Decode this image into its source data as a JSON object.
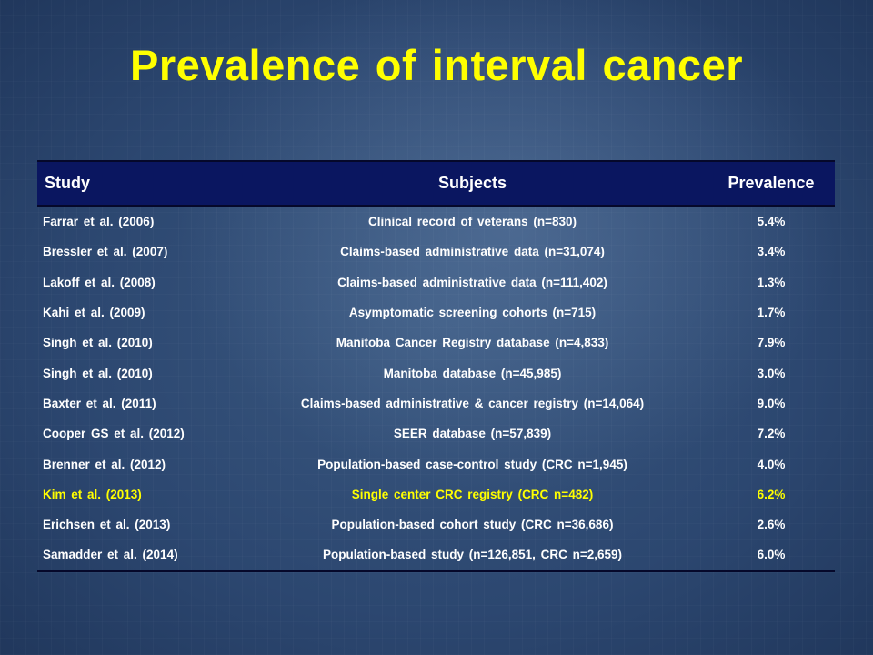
{
  "slide": {
    "title": "Prevalence of interval cancer"
  },
  "table": {
    "headers": {
      "study": "Study",
      "subjects": "Subjects",
      "prevalence": "Prevalence"
    },
    "rows": [
      {
        "study": "Farrar et al. (2006)",
        "subjects": "Clinical  record of veterans  (n=830)",
        "prevalence": "5.4%",
        "highlight": false
      },
      {
        "study": "Bressler  et al.  (2007)",
        "subjects": "Claims-based  administrative  data  (n=31,074)",
        "prevalence": "3.4%",
        "highlight": false
      },
      {
        "study": "Lakoff  et al.  (2008)",
        "subjects": "Claims-based  administrative  data  (n=111,402)",
        "prevalence": "1.3%",
        "highlight": false
      },
      {
        "study": "Kahi et al. (2009)",
        "subjects": "Asymptomatic  screening  cohorts  (n=715)",
        "prevalence": "1.7%",
        "highlight": false
      },
      {
        "study": "Singh  et al.  (2010)",
        "subjects": "Manitoba  Cancer  Registry  database  (n=4,833)",
        "prevalence": "7.9%",
        "highlight": false
      },
      {
        "study": "Singh  et al.  (2010)",
        "subjects": "Manitoba  database  (n=45,985)",
        "prevalence": "3.0%",
        "highlight": false
      },
      {
        "study": "Baxter et al. (2011)",
        "subjects": "Claims-based  administrative  & cancer registry  (n=14,064)",
        "prevalence": "9.0%",
        "highlight": false
      },
      {
        "study": "Cooper GS et al. (2012)",
        "subjects": "SEER database  (n=57,839)",
        "prevalence": "7.2%",
        "highlight": false
      },
      {
        "study": "Brenner  et al.  (2012)",
        "subjects": "Population-based  case-control  study  (CRC n=1,945)",
        "prevalence": "4.0%",
        "highlight": false
      },
      {
        "study": "Kim et al. (2013)",
        "subjects": "Single  center  CRC registry  (CRC n=482)",
        "prevalence": "6.2%",
        "highlight": true
      },
      {
        "study": "Erichsen  et al.  (2013)",
        "subjects": "Population-based  cohort study  (CRC n=36,686)",
        "prevalence": "2.6%",
        "highlight": false
      },
      {
        "study": "Samadder  et al.  (2014)",
        "subjects": "Population-based  study  (n=126,851,  CRC n=2,659)",
        "prevalence": "6.0%",
        "highlight": false
      }
    ]
  },
  "colors": {
    "title": "#ffff00",
    "header_bg": "#0a1660",
    "text": "#ffffff",
    "highlight": "#ffff00",
    "background": "#2c4770"
  }
}
